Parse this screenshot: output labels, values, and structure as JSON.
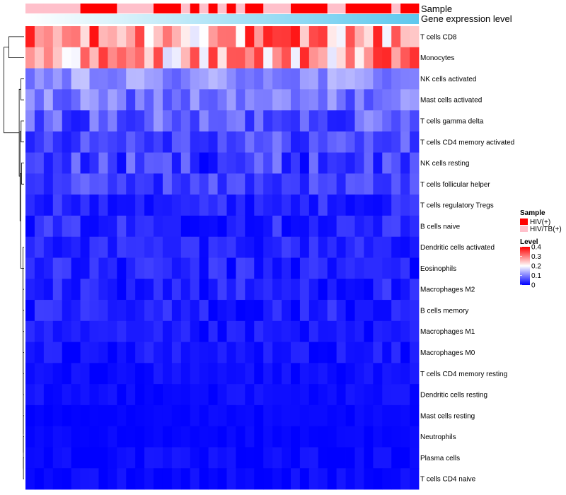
{
  "chart_data": {
    "type": "heatmap",
    "title": "",
    "annotation_labels": {
      "sample": "Sample",
      "gene_expression": "Gene expression level"
    },
    "rows": [
      "T cells CD8",
      "Monocytes",
      "NK cells activated",
      "Mast cells activated",
      "T cells gamma delta",
      "T cells CD4 memory activated",
      "NK cells resting",
      "T cells follicular helper",
      "T cells regulatory  Tregs",
      "B cells naive",
      "Dendritic cells activated",
      "Eosinophils",
      "Macrophages M2",
      "B cells memory",
      "Macrophages M1",
      "Macrophages M0",
      "T cells CD4 memory resting",
      "Dendritic cells resting",
      "Mast cells resting",
      "Neutrophils",
      "Plasma cells",
      "T cells CD4 naive"
    ],
    "n_columns": 43,
    "sample_groups": [
      "HIV/TB(+)",
      "HIV/TB(+)",
      "HIV/TB(+)",
      "HIV/TB(+)",
      "HIV/TB(+)",
      "HIV/TB(+)",
      "HIV(+)",
      "HIV(+)",
      "HIV(+)",
      "HIV(+)",
      "HIV/TB(+)",
      "HIV/TB(+)",
      "HIV/TB(+)",
      "HIV/TB(+)",
      "HIV(+)",
      "HIV(+)",
      "HIV(+)",
      "HIV/TB(+)",
      "HIV(+)",
      "HIV/TB(+)",
      "HIV(+)",
      "HIV/TB(+)",
      "HIV(+)",
      "HIV/TB(+)",
      "HIV(+)",
      "HIV(+)",
      "HIV/TB(+)",
      "HIV/TB(+)",
      "HIV/TB(+)",
      "HIV(+)",
      "HIV(+)",
      "HIV(+)",
      "HIV(+)",
      "HIV/TB(+)",
      "HIV/TB(+)",
      "HIV(+)",
      "HIV(+)",
      "HIV(+)",
      "HIV(+)",
      "HIV(+)",
      "HIV/TB(+)",
      "HIV(+)",
      "HIV(+)"
    ],
    "row_levels": [
      0.28,
      0.27,
      0.11,
      0.09,
      0.07,
      0.06,
      0.05,
      0.05,
      0.03,
      0.03,
      0.03,
      0.025,
      0.025,
      0.02,
      0.015,
      0.015,
      0.01,
      0.01,
      0.005,
      0.005,
      0.008,
      0.006
    ],
    "row_spread": [
      0.11,
      0.1,
      0.045,
      0.045,
      0.05,
      0.04,
      0.05,
      0.035,
      0.025,
      0.03,
      0.025,
      0.03,
      0.03,
      0.03,
      0.02,
      0.02,
      0.012,
      0.012,
      0.006,
      0.006,
      0.012,
      0.012
    ],
    "legend": {
      "sample_title": "Sample",
      "groups": [
        {
          "name": "HIV(+)",
          "color": "#ff0000"
        },
        {
          "name": "HIV/TB(+)",
          "color": "#ffc0cb"
        }
      ],
      "level_title": "Level",
      "ticks": [
        0.4,
        0.3,
        0.2,
        0.1,
        0
      ],
      "range": [
        0,
        0.4
      ]
    },
    "colors": {
      "low": "#0000ff",
      "mid": "#ffffff",
      "high": "#ff0000",
      "mid_value": 0.2
    },
    "gene_expression_gradient": [
      "#ffffff",
      "#5ec8ee"
    ]
  }
}
